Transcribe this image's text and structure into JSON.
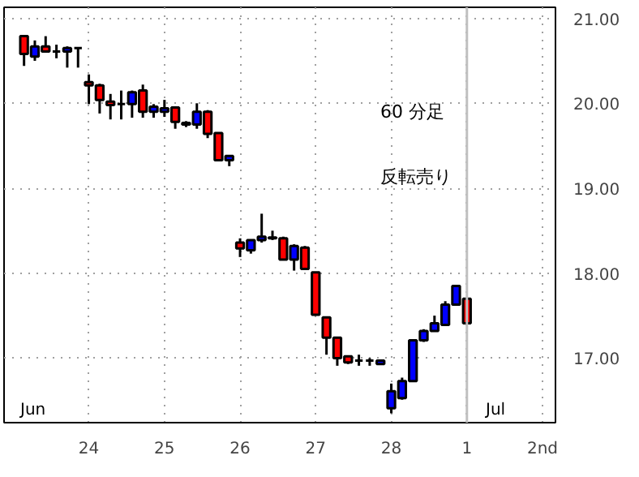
{
  "chart_data": {
    "type": "candlestick",
    "categories": [
      null,
      null,
      null,
      null,
      null,
      null,
      "24",
      null,
      null,
      null,
      null,
      null,
      null,
      "25",
      null,
      null,
      null,
      null,
      null,
      null,
      "26",
      null,
      null,
      null,
      null,
      null,
      null,
      "27",
      null,
      null,
      null,
      null,
      null,
      null,
      "28",
      null,
      null,
      null,
      null,
      null,
      null,
      "1",
      null,
      null,
      null,
      null,
      null,
      null,
      "2nd"
    ],
    "ohlc": [
      [
        20.79,
        20.79,
        20.44,
        20.58
      ],
      [
        20.55,
        20.74,
        20.5,
        20.67
      ],
      [
        20.67,
        20.79,
        20.61,
        20.61
      ],
      [
        20.61,
        20.69,
        20.53,
        20.61
      ],
      [
        20.61,
        20.67,
        20.42,
        20.65
      ],
      [
        20.65,
        20.65,
        20.42,
        20.65
      ],
      [
        20.25,
        20.34,
        19.99,
        20.21
      ],
      [
        20.21,
        20.23,
        19.88,
        20.04
      ],
      [
        20.02,
        20.11,
        19.81,
        19.98
      ],
      [
        19.99,
        20.15,
        19.81,
        19.99
      ],
      [
        19.99,
        20.15,
        19.83,
        20.13
      ],
      [
        20.15,
        20.22,
        19.83,
        19.9
      ],
      [
        19.9,
        19.99,
        19.83,
        19.96
      ],
      [
        19.9,
        20.04,
        19.84,
        19.94
      ],
      [
        19.95,
        19.95,
        19.7,
        19.78
      ],
      [
        19.77,
        19.79,
        19.72,
        19.75
      ],
      [
        19.75,
        20.0,
        19.7,
        19.9
      ],
      [
        19.9,
        19.92,
        19.59,
        19.64
      ],
      [
        19.65,
        19.65,
        19.33,
        19.33
      ],
      [
        19.33,
        19.39,
        19.26,
        19.38
      ],
      [
        18.36,
        18.41,
        18.19,
        18.29
      ],
      [
        18.27,
        18.39,
        18.23,
        18.39
      ],
      [
        18.39,
        18.7,
        18.36,
        18.43
      ],
      [
        18.42,
        18.5,
        18.39,
        18.41
      ],
      [
        18.41,
        18.43,
        18.16,
        18.16
      ],
      [
        18.16,
        18.34,
        18.03,
        18.32
      ],
      [
        18.3,
        18.32,
        18.05,
        18.05
      ],
      [
        18.01,
        18.01,
        17.51,
        17.51
      ],
      [
        17.48,
        17.48,
        17.04,
        17.24
      ],
      [
        17.24,
        17.24,
        16.91,
        17.0
      ],
      [
        17.02,
        17.02,
        16.93,
        16.95
      ],
      [
        16.97,
        17.04,
        16.91,
        16.97
      ],
      [
        16.97,
        17.0,
        16.91,
        16.97
      ],
      [
        16.93,
        16.97,
        16.93,
        16.97
      ],
      [
        16.41,
        16.7,
        16.35,
        16.61
      ],
      [
        16.53,
        16.77,
        16.51,
        16.73
      ],
      [
        16.73,
        17.21,
        16.73,
        17.21
      ],
      [
        17.21,
        17.34,
        17.19,
        17.32
      ],
      [
        17.32,
        17.5,
        17.32,
        17.41
      ],
      [
        17.39,
        17.67,
        17.38,
        17.63
      ],
      [
        17.63,
        17.85,
        17.63,
        17.85
      ],
      [
        17.7,
        17.7,
        17.41,
        17.41
      ],
      null,
      null,
      null,
      null,
      null,
      null,
      null
    ],
    "colors": [
      "#ff0000",
      "#0000ff",
      "#ff0000",
      "#000000",
      "#0000ff",
      "#000000",
      "#ff0000",
      "#ff0000",
      "#ff0000",
      "#000000",
      "#0000ff",
      "#ff0000",
      "#0000ff",
      "#0000ff",
      "#ff0000",
      "#000000",
      "#0000ff",
      "#ff0000",
      "#ff0000",
      "#0000ff",
      "#ff0000",
      "#0000ff",
      "#0000ff",
      "#000000",
      "#ff0000",
      "#0000ff",
      "#ff0000",
      "#ff0000",
      "#ff0000",
      "#ff0000",
      "#ff0000",
      "#000000",
      "#000000",
      "#0000ff",
      "#0000ff",
      "#0000ff",
      "#0000ff",
      "#0000ff",
      "#0000ff",
      "#0000ff",
      "#0000ff",
      "#ff0000",
      null,
      null,
      null,
      null,
      null,
      null,
      null
    ],
    "ylim": [
      16.24,
      21.13
    ],
    "yticks": [
      {
        "value": 17,
        "label": "17.00"
      },
      {
        "value": 18,
        "label": "18.00"
      },
      {
        "value": 19,
        "label": "19.00"
      },
      {
        "value": 20,
        "label": "20.00"
      },
      {
        "value": 21,
        "label": "21.00"
      }
    ],
    "grid": true,
    "ref_lines": [
      {
        "axis": "x",
        "value": "1",
        "color": "#c0c0c0"
      }
    ],
    "annotations": [
      "60 分足",
      "反転売り",
      "Jun",
      "Jul"
    ]
  }
}
